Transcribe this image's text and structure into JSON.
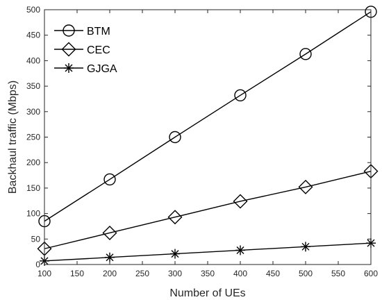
{
  "chart_data": {
    "type": "line",
    "title": "",
    "xlabel": "Number of UEs",
    "ylabel": "Backhaul traffic (Mbps)",
    "xlim": [
      100,
      600
    ],
    "ylim": [
      0,
      500
    ],
    "xticks": [
      100,
      150,
      200,
      250,
      300,
      350,
      400,
      450,
      500,
      550,
      600
    ],
    "yticks": [
      0,
      50,
      100,
      150,
      200,
      250,
      300,
      350,
      400,
      450,
      500
    ],
    "grid": false,
    "legend_position": "top-left",
    "x": [
      100,
      200,
      300,
      400,
      500,
      600
    ],
    "series": [
      {
        "name": "BTM",
        "marker": "circle",
        "color": "#000000",
        "values": [
          85,
          167,
          250,
          332,
          413,
          496
        ]
      },
      {
        "name": "CEC",
        "marker": "diamond",
        "color": "#000000",
        "values": [
          31,
          62,
          93,
          124,
          152,
          183
        ]
      },
      {
        "name": "GJGA",
        "marker": "star",
        "color": "#000000",
        "values": [
          7,
          14,
          21,
          28,
          35,
          42
        ]
      }
    ]
  }
}
